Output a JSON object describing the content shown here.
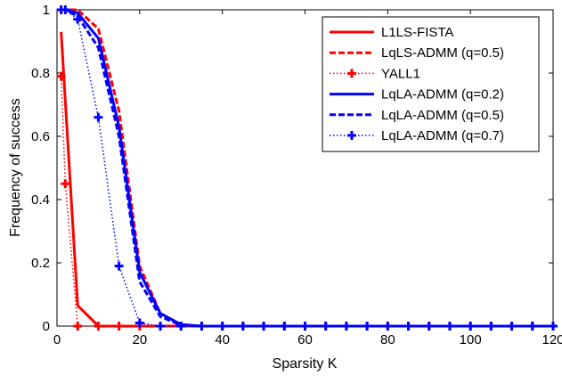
{
  "chart_data": {
    "type": "line",
    "title": "",
    "xlabel": "Sparsity K",
    "ylabel": "Frequency of success",
    "xlim": [
      0,
      120
    ],
    "ylim": [
      0,
      1
    ],
    "xticks": [
      0,
      20,
      40,
      60,
      80,
      100,
      120
    ],
    "yticks": [
      0,
      0.2,
      0.4,
      0.6,
      0.8,
      1
    ],
    "grid": false,
    "legend_position": "top-right",
    "series": [
      {
        "name": "L1LS-FISTA",
        "color": "#ff0000",
        "style": "solid",
        "marker": "none",
        "x": [
          1,
          5,
          10,
          15,
          20,
          25,
          30,
          35,
          40,
          45,
          50,
          55,
          60,
          65,
          70,
          75,
          80,
          85,
          90,
          95,
          100,
          105,
          110,
          115,
          120
        ],
        "y": [
          0.93,
          0.065,
          0,
          0,
          0,
          0,
          0,
          0,
          0,
          0,
          0,
          0,
          0,
          0,
          0,
          0,
          0,
          0,
          0,
          0,
          0,
          0,
          0,
          0,
          0
        ]
      },
      {
        "name": "LqLS-ADMM (q=0.5)",
        "color": "#ff0000",
        "style": "dashed",
        "marker": "none",
        "x": [
          1,
          2,
          5,
          10,
          15,
          20,
          25,
          30,
          35,
          40,
          45,
          50,
          55,
          60,
          65,
          70,
          75,
          80,
          85,
          90,
          95,
          100,
          105,
          110,
          115,
          120
        ],
        "y": [
          1,
          1,
          1,
          0.94,
          0.68,
          0.19,
          0.04,
          0.005,
          0,
          0,
          0,
          0,
          0,
          0,
          0,
          0,
          0,
          0,
          0,
          0,
          0,
          0,
          0,
          0,
          0,
          0
        ]
      },
      {
        "name": "YALL1",
        "color": "#ff0000",
        "style": "dotted",
        "marker": "plus",
        "x": [
          1,
          2,
          5,
          10,
          15,
          20,
          25,
          30,
          35,
          40,
          45,
          50,
          55,
          60,
          65,
          70,
          75,
          80,
          85,
          90,
          95,
          100,
          105,
          110,
          115,
          120
        ],
        "y": [
          0.79,
          0.45,
          0,
          0,
          0,
          0,
          0,
          0,
          0,
          0,
          0,
          0,
          0,
          0,
          0,
          0,
          0,
          0,
          0,
          0,
          0,
          0,
          0,
          0,
          0,
          0
        ]
      },
      {
        "name": "LqLA-ADMM (q=0.2)",
        "color": "#0000ff",
        "style": "solid",
        "marker": "none",
        "x": [
          1,
          2,
          5,
          10,
          15,
          20,
          25,
          30,
          35,
          40,
          45,
          50,
          55,
          60,
          65,
          70,
          75,
          80,
          85,
          90,
          95,
          100,
          105,
          110,
          115,
          120
        ],
        "y": [
          1,
          1,
          0.99,
          0.91,
          0.63,
          0.17,
          0.04,
          0.005,
          0,
          0,
          0,
          0,
          0,
          0,
          0,
          0,
          0,
          0,
          0,
          0,
          0,
          0,
          0,
          0,
          0,
          0
        ]
      },
      {
        "name": "LqLA-ADMM (q=0.5)",
        "color": "#0000ff",
        "style": "dashed",
        "marker": "none",
        "x": [
          1,
          2,
          5,
          10,
          15,
          20,
          25,
          30,
          35,
          40,
          45,
          50,
          55,
          60,
          65,
          70,
          75,
          80,
          85,
          90,
          95,
          100,
          105,
          110,
          115,
          120
        ],
        "y": [
          1,
          1,
          0.98,
          0.88,
          0.6,
          0.14,
          0.03,
          0.003,
          0,
          0,
          0,
          0,
          0,
          0,
          0,
          0,
          0,
          0,
          0,
          0,
          0,
          0,
          0,
          0,
          0,
          0
        ]
      },
      {
        "name": "LqLA-ADMM (q=0.7)",
        "color": "#0000ff",
        "style": "dotted",
        "marker": "plus",
        "x": [
          1,
          2,
          5,
          10,
          15,
          20,
          25,
          30,
          35,
          40,
          45,
          50,
          55,
          60,
          65,
          70,
          75,
          80,
          85,
          90,
          95,
          100,
          105,
          110,
          115,
          120
        ],
        "y": [
          1,
          1,
          0.97,
          0.66,
          0.19,
          0.01,
          0,
          0,
          0,
          0,
          0,
          0,
          0,
          0,
          0,
          0,
          0,
          0,
          0,
          0,
          0,
          0,
          0,
          0,
          0,
          0
        ]
      }
    ]
  }
}
